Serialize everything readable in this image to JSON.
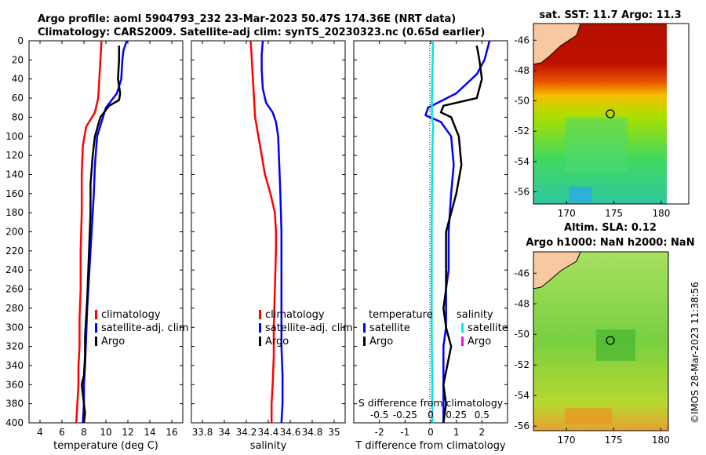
{
  "title_line1": "Argo profile: aoml 5904793_232 23-Mar-2023 50.47S 174.36E (NRT data)",
  "title_line2": "Climatology: CARS2009. Satellite-adj clim: synTS_20230323.nc (0.65d earlier)",
  "depth_ticks": [
    "0",
    "20",
    "40",
    "60",
    "80",
    "100",
    "120",
    "140",
    "160",
    "180",
    "200",
    "220",
    "240",
    "260",
    "280",
    "300",
    "320",
    "340",
    "360",
    "380",
    "400"
  ],
  "legend": {
    "climatology": "climatology",
    "satellite_adj": "satellite-adj. clim",
    "argo": "Argo",
    "temperature": "temperature",
    "salinity": "salinity",
    "satellite": "satellite"
  },
  "colors": {
    "climatology": "#ff0000",
    "satellite": "#0000ff",
    "argo": "#000000",
    "sal_satellite": "#00e5ee",
    "sal_argo": "#ff00ff"
  },
  "watermark": "©IMOS 28-Mar-2023 11:38:56",
  "maps": {
    "sst": {
      "title": "sat. SST: 11.7 Argo: 11.3",
      "xticks": [
        "170",
        "175",
        "180"
      ],
      "yticks": [
        "-46",
        "-48",
        "-50",
        "-52",
        "-54",
        "-56"
      ]
    },
    "sla": {
      "title1": "Altim. SLA: 0.12",
      "title2": "Argo h1000: NaN h2000: NaN",
      "xticks": [
        "170",
        "175",
        "180"
      ],
      "yticks": [
        "-46",
        "-48",
        "-50",
        "-52",
        "-54",
        "-56"
      ]
    }
  },
  "chart_data": [
    {
      "type": "line",
      "xlabel": "temperature (deg C)",
      "ylabel": "",
      "xlim": [
        3,
        17
      ],
      "ylim": [
        400,
        0
      ],
      "xticks": [
        "4",
        "6",
        "8",
        "10",
        "12",
        "14",
        "16"
      ],
      "series": [
        {
          "name": "climatology",
          "color": "#ff0000",
          "x": [
            9.6,
            9.5,
            9.4,
            9.3,
            9.0,
            8.2,
            7.9,
            7.8,
            7.8,
            7.7,
            7.7,
            7.6,
            7.6,
            7.5,
            7.5,
            7.4,
            7.3
          ],
          "y": [
            0,
            20,
            40,
            60,
            75,
            90,
            110,
            140,
            180,
            220,
            260,
            290,
            320,
            340,
            360,
            380,
            400
          ]
        },
        {
          "name": "satellite-adj. clim",
          "color": "#0000ff",
          "x": [
            11.9,
            11.6,
            11.5,
            11.4,
            11.0,
            10.0,
            9.6,
            9.2,
            9.0,
            8.9,
            8.7,
            8.5,
            8.3,
            8.2,
            8.1,
            8.0,
            8.0,
            7.9
          ],
          "y": [
            0,
            10,
            20,
            40,
            55,
            70,
            85,
            100,
            130,
            160,
            200,
            240,
            280,
            310,
            340,
            360,
            380,
            400
          ]
        },
        {
          "name": "Argo",
          "color": "#000000",
          "x": [
            11.2,
            11.2,
            11.1,
            11.3,
            11.2,
            10.3,
            9.5,
            9.0,
            8.8,
            8.6,
            8.6,
            8.5,
            8.4,
            8.3,
            8.2,
            8.1,
            8.1,
            8.0,
            7.8,
            7.9,
            8.0,
            8.1,
            8.0
          ],
          "y": [
            5,
            20,
            40,
            55,
            62,
            68,
            80,
            100,
            120,
            150,
            180,
            210,
            240,
            270,
            290,
            310,
            330,
            350,
            360,
            370,
            380,
            390,
            400
          ]
        }
      ]
    },
    {
      "type": "line",
      "xlabel": "salinity",
      "ylabel": "",
      "xlim": [
        33.7,
        35.1
      ],
      "ylim": [
        400,
        0
      ],
      "xticks": [
        "33.8",
        "34",
        "34.2",
        "34.4",
        "34.6",
        "34.8",
        "35"
      ],
      "series": [
        {
          "name": "climatology",
          "color": "#ff0000",
          "x": [
            34.24,
            34.25,
            34.26,
            34.27,
            34.28,
            34.31,
            34.34,
            34.37,
            34.42,
            34.46,
            34.47,
            34.47,
            34.46,
            34.45,
            34.45,
            34.44,
            34.43,
            34.43
          ],
          "y": [
            0,
            20,
            40,
            60,
            80,
            100,
            120,
            140,
            160,
            180,
            200,
            220,
            260,
            300,
            330,
            360,
            380,
            400
          ]
        },
        {
          "name": "satellite-adj. clim",
          "color": "#0000ff",
          "x": [
            34.35,
            34.34,
            34.34,
            34.35,
            34.38,
            34.44,
            34.47,
            34.49,
            34.5,
            34.51,
            34.52,
            34.52,
            34.52,
            34.52,
            34.53,
            34.53,
            34.52
          ],
          "y": [
            0,
            15,
            30,
            50,
            65,
            75,
            85,
            100,
            130,
            160,
            200,
            240,
            280,
            320,
            350,
            380,
            400
          ]
        }
      ]
    },
    {
      "type": "line",
      "xlabel": "T difference from climatology",
      "ylabel": "",
      "xlim": [
        -3,
        3
      ],
      "ylim": [
        400,
        0
      ],
      "xticks": [
        "-2",
        "-1",
        "0",
        "1",
        "2"
      ],
      "secondary_axis": {
        "label": "S difference from climatology",
        "ticks": [
          "-0.5",
          "-0.25",
          "0",
          "0.25",
          "0.5"
        ],
        "xlim": [
          -0.75,
          0.75
        ]
      },
      "series": [
        {
          "name": "temperature satellite",
          "color": "#0000ff",
          "x": [
            2.3,
            2.1,
            1.8,
            1.0,
            -0.1,
            -0.2,
            0.4,
            0.8,
            0.9,
            0.8,
            0.7,
            0.7,
            0.6,
            0.6,
            0.6,
            0.5,
            0.5,
            0.5,
            0.5,
            0.5
          ],
          "y": [
            0,
            20,
            35,
            55,
            70,
            78,
            85,
            100,
            130,
            160,
            200,
            240,
            260,
            280,
            300,
            320,
            340,
            360,
            380,
            400
          ]
        },
        {
          "name": "temperature Argo",
          "color": "#000000",
          "x": [
            1.8,
            1.9,
            2.0,
            1.8,
            0.5,
            0.4,
            0.8,
            1.1,
            1.2,
            1.0,
            0.6,
            0.6,
            0.6,
            0.5,
            0.6,
            0.8,
            0.5,
            0.6,
            0.5
          ],
          "y": [
            5,
            20,
            40,
            60,
            68,
            75,
            80,
            100,
            130,
            160,
            200,
            240,
            260,
            280,
            300,
            320,
            360,
            380,
            400
          ]
        },
        {
          "name": "salinity satellite",
          "color": "#00e5ee",
          "x": [
            0.09,
            0.08,
            0.06,
            0.05,
            0.05,
            0.1,
            0.08,
            0.06,
            0.05,
            0.04,
            0.04,
            0.04,
            0.04,
            0.05,
            0.06,
            0.06,
            0.07
          ],
          "y": [
            0,
            20,
            40,
            60,
            80,
            90,
            100,
            120,
            160,
            200,
            240,
            270,
            300,
            330,
            360,
            380,
            400
          ]
        }
      ]
    }
  ]
}
